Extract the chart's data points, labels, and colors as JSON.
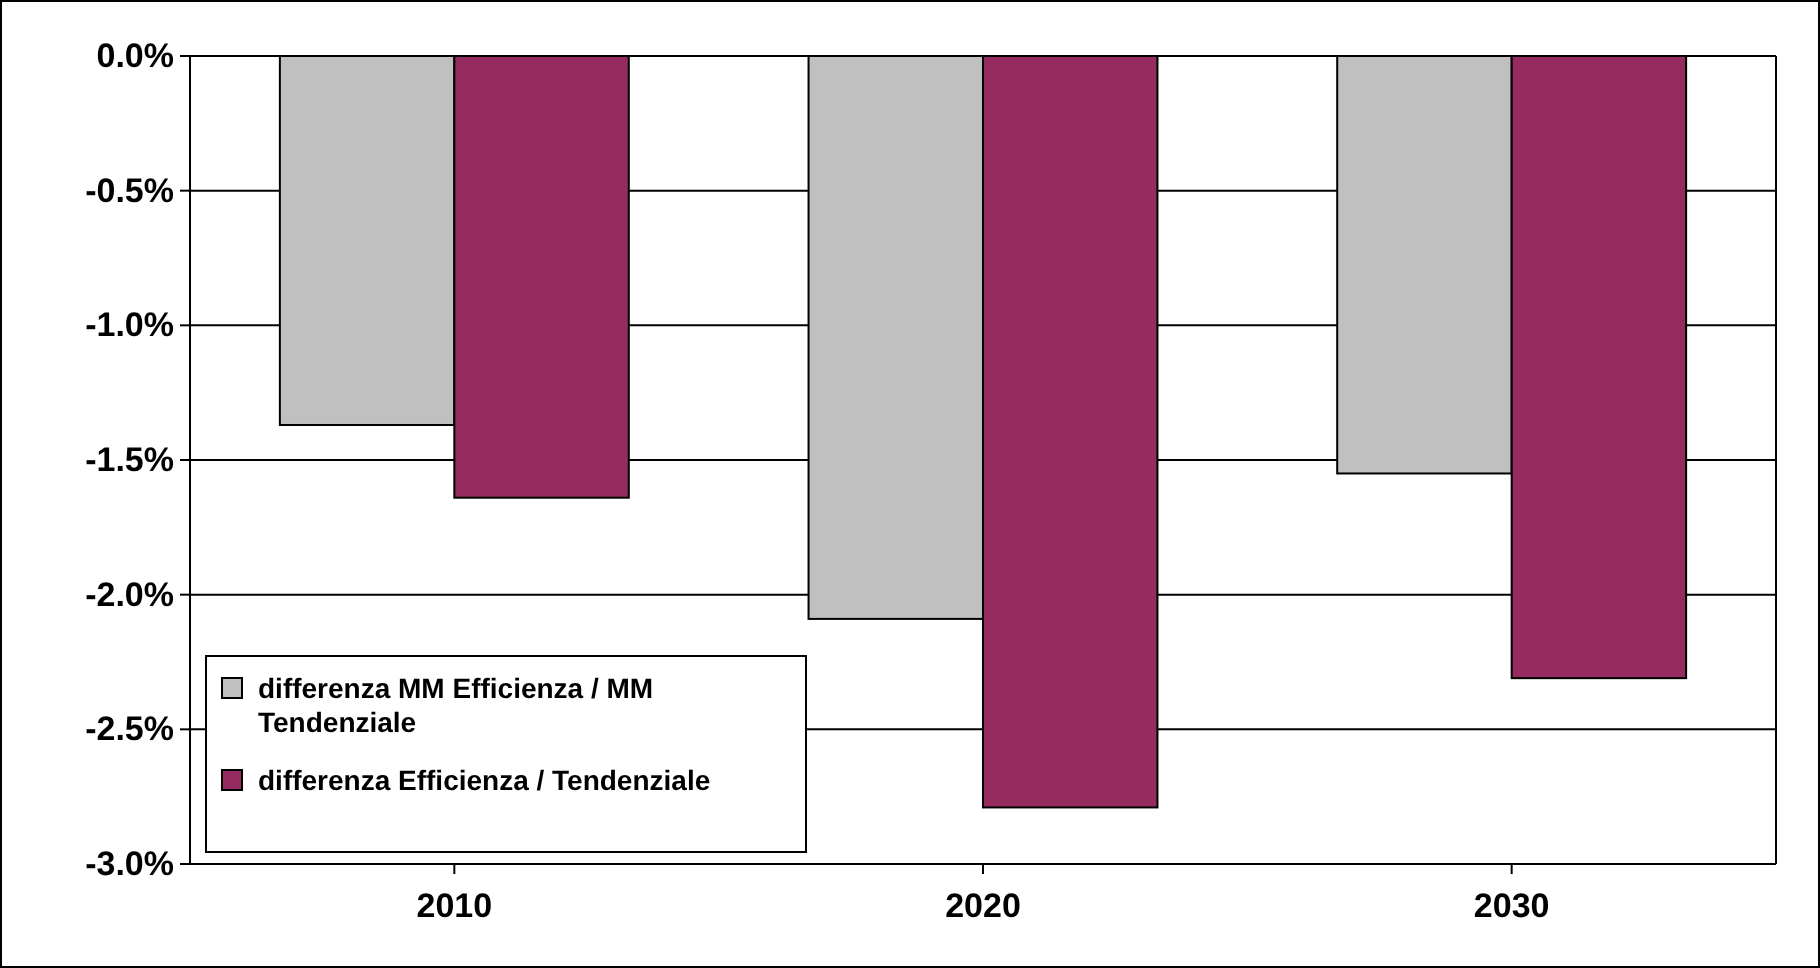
{
  "chart_data": {
    "type": "bar",
    "categories": [
      "2010",
      "2020",
      "2030"
    ],
    "series": [
      {
        "name": "differenza MM Efficienza / MM Tendenziale",
        "color": "#c0c0c0",
        "values": [
          -1.37,
          -2.09,
          -1.55
        ]
      },
      {
        "name": "differenza Efficienza / Tendenziale",
        "color": "#952b5e",
        "values": [
          -1.64,
          -2.79,
          -2.31
        ]
      }
    ],
    "ylim": [
      -3,
      0
    ],
    "yticks": [
      {
        "value": -3,
        "label": "-3.0%"
      },
      {
        "value": -2.5,
        "label": "-2.5%"
      },
      {
        "value": -2,
        "label": "-2.0%"
      },
      {
        "value": -1.5,
        "label": "-1.5%"
      },
      {
        "value": -1,
        "label": "-1.0%"
      },
      {
        "value": -0.5,
        "label": "-0.5%"
      },
      {
        "value": 0,
        "label": "0.0%"
      }
    ],
    "grid": "y",
    "legend": "bottom left"
  }
}
